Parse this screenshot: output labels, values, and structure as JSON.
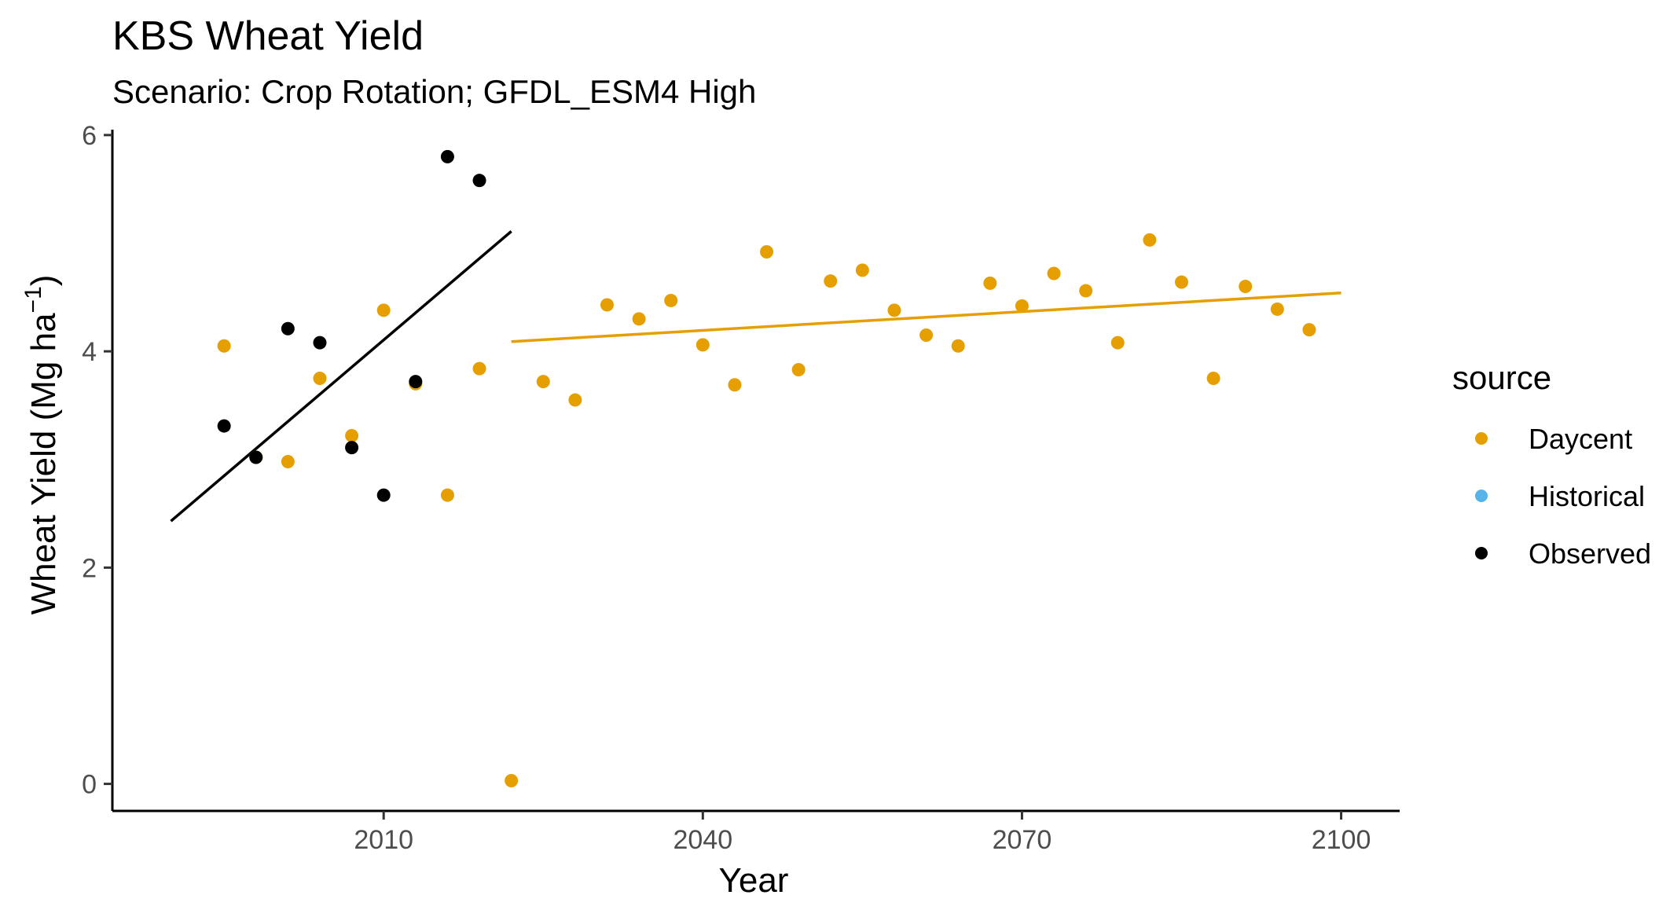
{
  "colors": {
    "daycent": "#E69F00",
    "historical": "#56B4E9",
    "observed": "#000000",
    "axis": "#000000",
    "tick_text": "#4d4d4d"
  },
  "chart_data": {
    "type": "scatter",
    "title": "KBS Wheat Yield",
    "subtitle": "Scenario: Crop Rotation; GFDL_ESM4 High",
    "xlabel": "Year",
    "ylabel_main": "Wheat Yield (Mg ha",
    "ylabel_sup": "−1",
    "ylabel_close": ")",
    "xlim": [
      1984.5,
      2105.5
    ],
    "ylim": [
      -0.25,
      6.05
    ],
    "x_ticks": [
      2010,
      2040,
      2070,
      2100
    ],
    "x_tick_labels": [
      "2010",
      "2040",
      "2070",
      "2100"
    ],
    "y_ticks": [
      0,
      2,
      4,
      6
    ],
    "y_tick_labels": [
      "0",
      "2",
      "4",
      "6"
    ],
    "grid": false,
    "legend": {
      "title": "source",
      "position": "right",
      "entries": [
        "Daycent",
        "Historical",
        "Observed"
      ]
    },
    "series": [
      {
        "name": "Daycent",
        "color": "#E69F00",
        "x": [
          1995,
          1998,
          2001,
          2004,
          2007,
          2010,
          2013,
          2016,
          2019,
          2022,
          2025,
          2028,
          2031,
          2034,
          2037,
          2040,
          2043,
          2046,
          2049,
          2052,
          2055,
          2058,
          2061,
          2064,
          2067,
          2070,
          2073,
          2076,
          2079,
          2082,
          2085,
          2088,
          2091,
          2094,
          2097
        ],
        "y": [
          4.05,
          3.02,
          2.98,
          3.75,
          3.22,
          4.38,
          3.7,
          2.67,
          3.84,
          0.03,
          3.72,
          3.55,
          4.43,
          4.3,
          4.47,
          4.06,
          3.69,
          4.92,
          3.83,
          4.65,
          4.75,
          4.38,
          4.15,
          4.05,
          4.63,
          4.42,
          4.72,
          4.56,
          4.08,
          5.03,
          4.64,
          3.75,
          4.6,
          4.39,
          4.2
        ]
      },
      {
        "name": "Historical",
        "color": "#56B4E9",
        "x": [],
        "y": []
      },
      {
        "name": "Observed",
        "color": "#000000",
        "x": [
          1995,
          1998,
          2001,
          2004,
          2007,
          2010,
          2013,
          2016,
          2019
        ],
        "y": [
          3.31,
          3.02,
          4.21,
          4.08,
          3.11,
          2.67,
          3.72,
          5.8,
          5.58
        ]
      }
    ],
    "trend_lines": [
      {
        "name": "Observed trend",
        "color": "#000000",
        "x": [
          1990,
          2022
        ],
        "y": [
          2.43,
          5.11
        ]
      },
      {
        "name": "Daycent trend",
        "color": "#E69F00",
        "x": [
          2022,
          2100
        ],
        "y": [
          4.09,
          4.54
        ]
      }
    ]
  }
}
